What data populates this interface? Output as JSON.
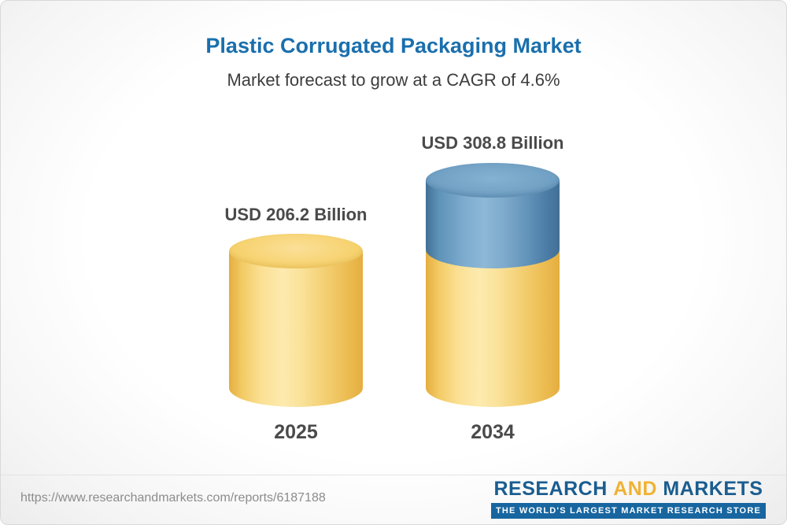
{
  "header": {
    "title": "Plastic Corrugated Packaging Market",
    "subtitle": "Market forecast to grow at a CAGR of 4.6%"
  },
  "chart_data": {
    "type": "bar",
    "variant": "3d-cylinder",
    "title": "Plastic Corrugated Packaging Market",
    "subtitle": "Market forecast to grow at a CAGR of 4.6%",
    "cagr_percent": 4.6,
    "categories": [
      "2025",
      "2034"
    ],
    "values": [
      206.2,
      308.8
    ],
    "unit": "USD Billion",
    "value_labels": [
      "USD 206.2 Billion",
      "USD 308.8 Billion"
    ],
    "legend": "none",
    "grid": false,
    "colors": {
      "bar_2025": "#f6cf6d",
      "bar_2034_base": "#f6cf6d",
      "bar_2034_growth": "#6e9ec2"
    }
  },
  "bars": [
    {
      "year": "2025",
      "label": "USD 206.2 Billion"
    },
    {
      "year": "2034",
      "label": "USD 308.8 Billion"
    }
  ],
  "footer": {
    "url": "https://www.researchandmarkets.com/reports/6187188",
    "brand": {
      "word1": "RESEARCH",
      "word2": "AND",
      "word3": "MARKETS",
      "tagline": "THE WORLD'S LARGEST MARKET RESEARCH STORE"
    }
  },
  "colors": {
    "title_blue": "#1a6fad",
    "text_dark": "#4a4a4a",
    "brand_blue": "#1a5d90",
    "brand_gold": "#f0b233"
  }
}
